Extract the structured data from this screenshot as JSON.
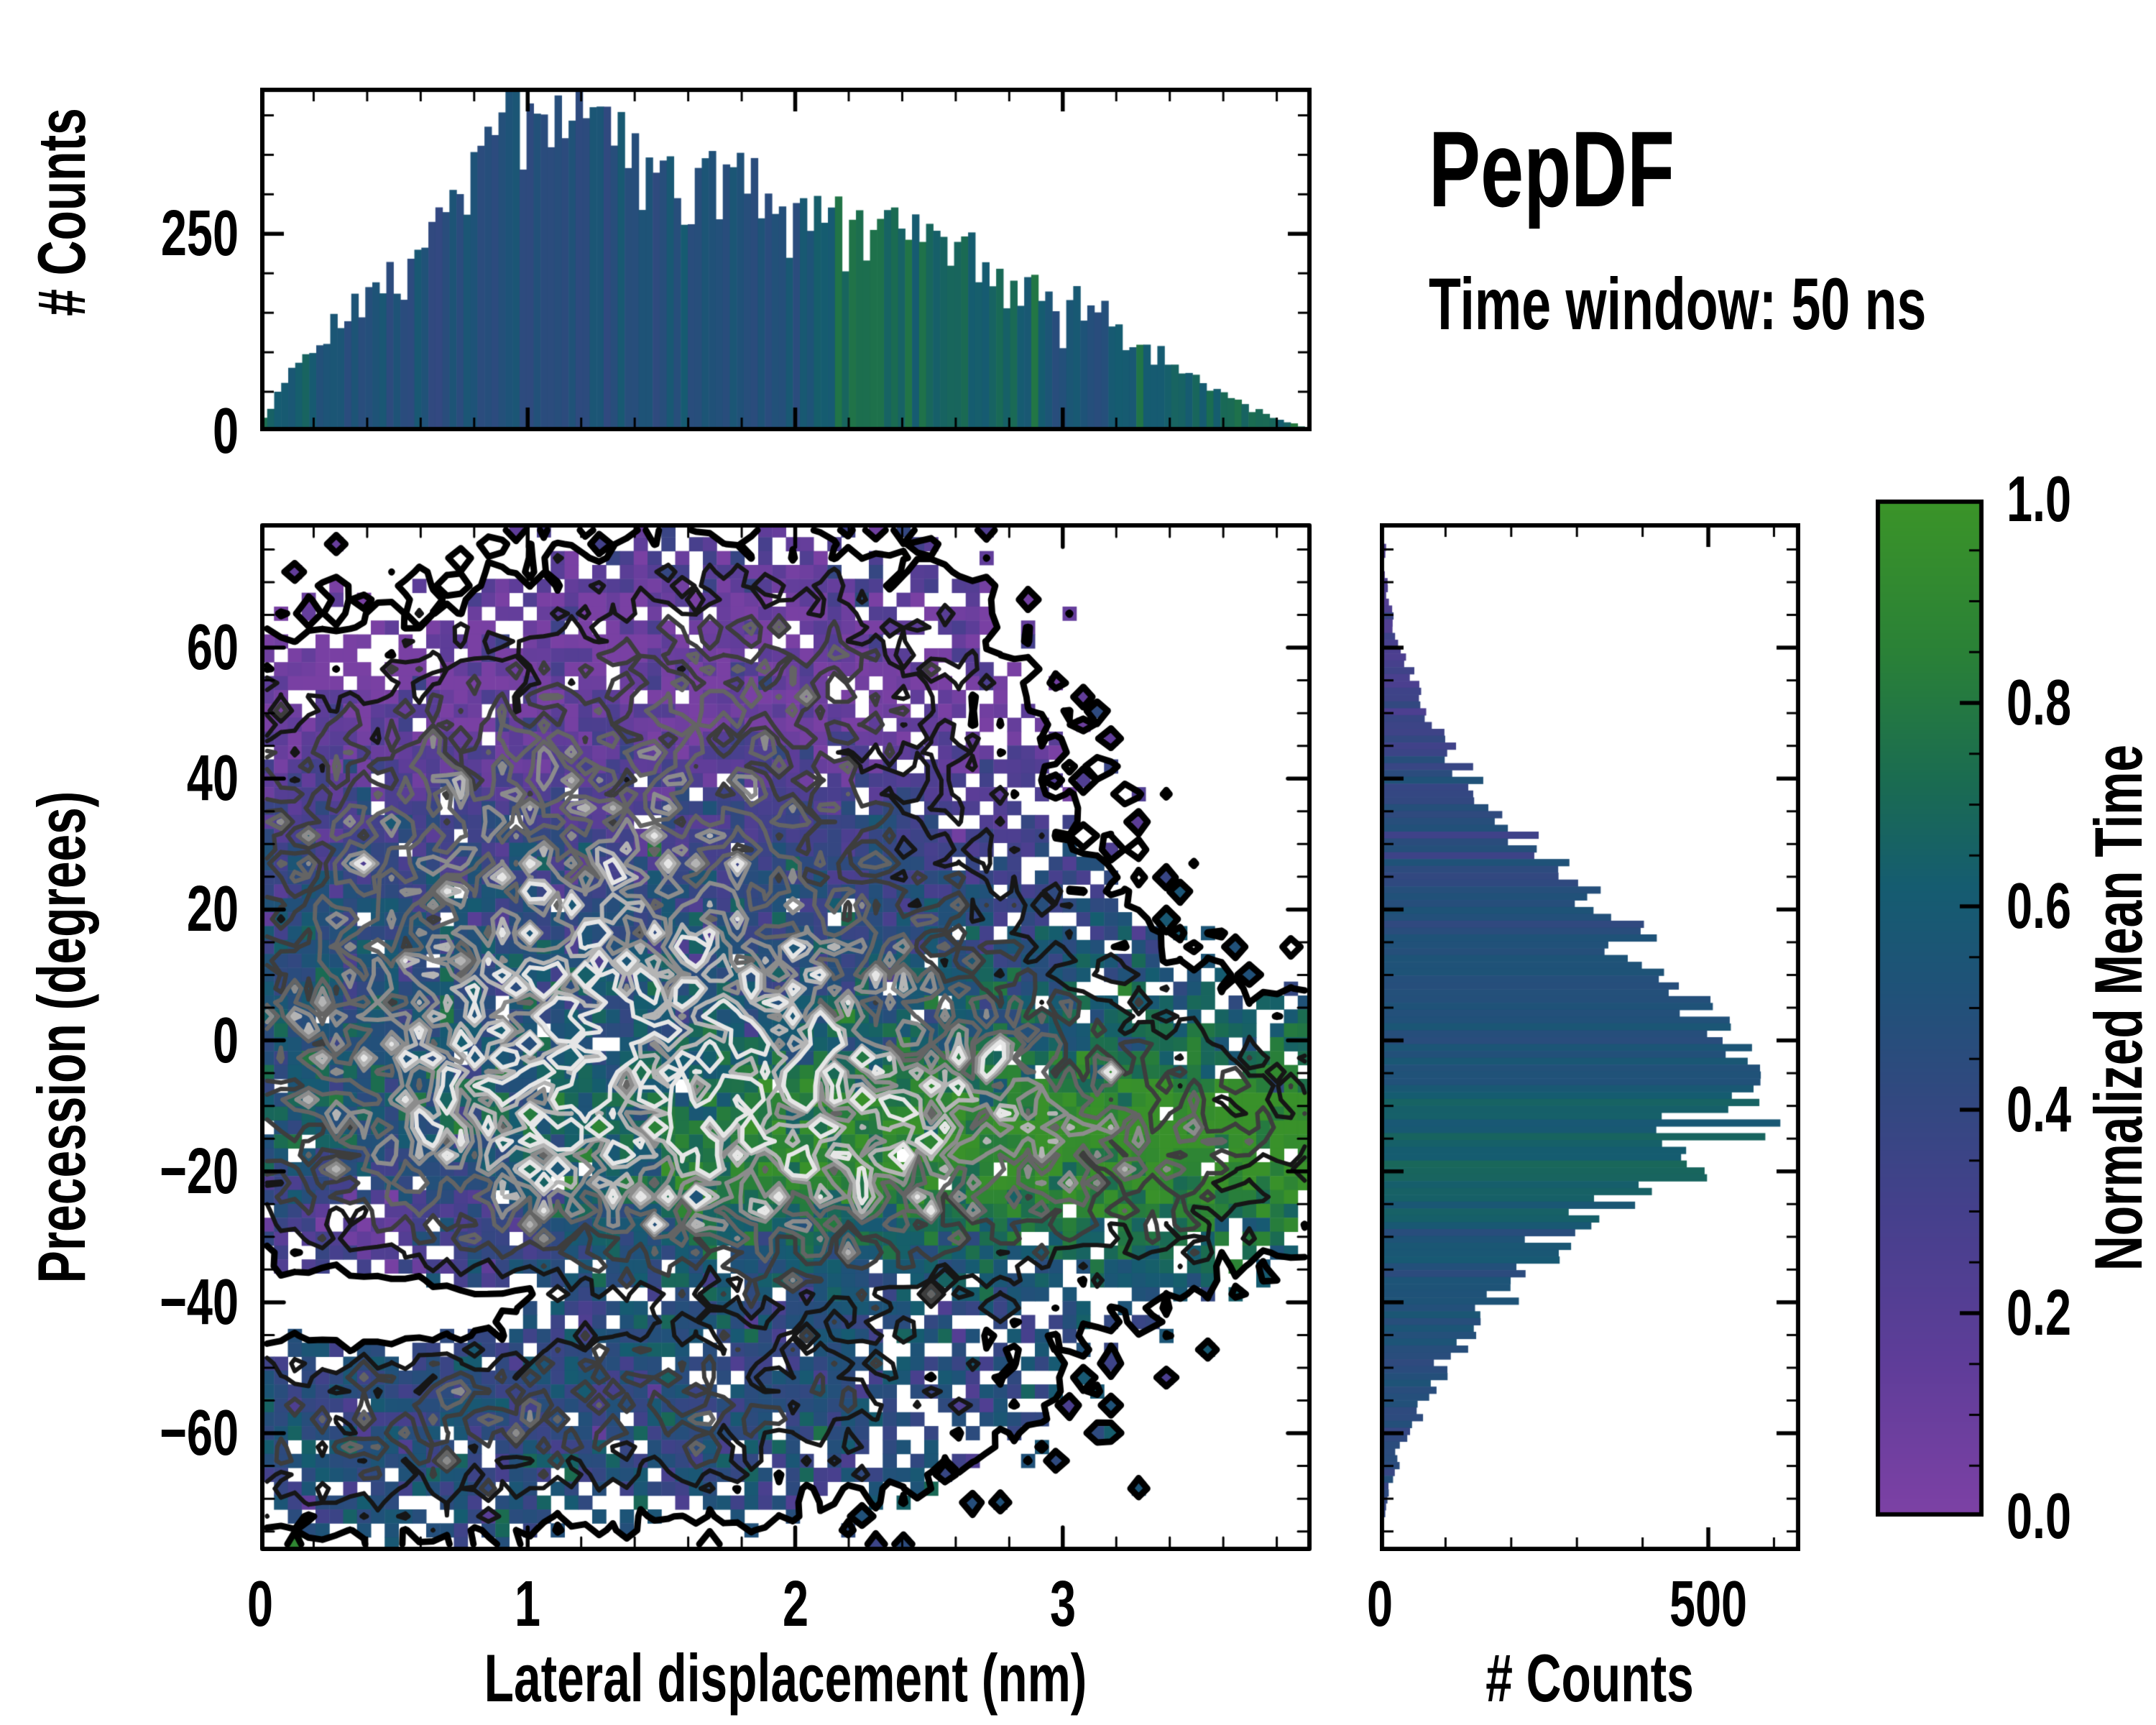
{
  "header": {
    "title": "PepDF",
    "subtitle": "Time window: 50 ns"
  },
  "axes": {
    "top": {
      "ylabel": "# Counts",
      "ylim": [
        0,
        435
      ],
      "yticks": [
        {
          "v": 250,
          "label": "250"
        },
        {
          "v": 0,
          "label": "0"
        }
      ],
      "y_minor_step": 50
    },
    "main": {
      "xlabel": "Lateral displacement (nm)",
      "ylabel": "Precession (degrees)",
      "xlim": [
        0,
        3.93
      ],
      "ylim": [
        -78,
        79
      ],
      "xticks": [
        {
          "v": 0,
          "label": "0"
        },
        {
          "v": 1,
          "label": "1"
        },
        {
          "v": 2,
          "label": "2"
        },
        {
          "v": 3,
          "label": "3"
        }
      ],
      "yticks": [
        {
          "v": 60,
          "label": "60"
        },
        {
          "v": 40,
          "label": "40"
        },
        {
          "v": 20,
          "label": "20"
        },
        {
          "v": 0,
          "label": "0"
        },
        {
          "v": -20,
          "label": "−20"
        },
        {
          "v": -40,
          "label": "−40"
        },
        {
          "v": -60,
          "label": "−60"
        }
      ],
      "x_minor_step": 0.2,
      "y_minor_step": 5
    },
    "right": {
      "xlabel": "# Counts",
      "xlim": [
        0,
        640
      ],
      "xticks": [
        {
          "v": 0,
          "label": "0"
        },
        {
          "v": 500,
          "label": "500"
        }
      ],
      "x_minor_step": 100
    },
    "colorbar": {
      "label": "Normalized Mean Time",
      "ticks": [
        {
          "v": 1.0,
          "label": "1.0"
        },
        {
          "v": 0.8,
          "label": "0.8"
        },
        {
          "v": 0.6,
          "label": "0.6"
        },
        {
          "v": 0.4,
          "label": "0.4"
        },
        {
          "v": 0.2,
          "label": "0.2"
        },
        {
          "v": 0.0,
          "label": "0.0"
        }
      ],
      "minor_step": 0.05,
      "range": [
        0,
        1
      ]
    }
  },
  "chart_data": [
    {
      "type": "bar",
      "name": "top-marginal-histogram",
      "orientation": "vertical",
      "xlabel": "Lateral displacement (nm)",
      "ylabel": "# Counts",
      "x_range": [
        0,
        3.93
      ],
      "y_range": [
        0,
        435
      ],
      "n_bins": 150,
      "bar_color_encodes": "normalized mean time",
      "envelope_x": [
        0,
        0.1,
        0.2,
        0.3,
        0.4,
        0.5,
        0.6,
        0.7,
        0.8,
        0.9,
        1.0,
        1.1,
        1.2,
        1.3,
        1.4,
        1.5,
        1.6,
        1.7,
        1.8,
        1.9,
        2.0,
        2.1,
        2.2,
        2.3,
        2.4,
        2.5,
        2.6,
        2.7,
        2.8,
        2.9,
        3.0,
        3.1,
        3.2,
        3.3,
        3.4,
        3.5,
        3.6,
        3.7,
        3.8,
        3.9
      ],
      "envelope_counts": [
        8,
        70,
        110,
        140,
        175,
        205,
        240,
        290,
        345,
        375,
        395,
        400,
        405,
        370,
        360,
        340,
        330,
        335,
        345,
        305,
        295,
        285,
        270,
        260,
        250,
        240,
        255,
        205,
        185,
        165,
        150,
        155,
        125,
        105,
        85,
        65,
        45,
        30,
        16,
        5
      ],
      "envelope_mean_time": [
        0.78,
        0.6,
        0.52,
        0.5,
        0.5,
        0.5,
        0.49,
        0.48,
        0.48,
        0.47,
        0.47,
        0.47,
        0.48,
        0.48,
        0.49,
        0.5,
        0.5,
        0.5,
        0.51,
        0.52,
        0.55,
        0.6,
        0.68,
        0.72,
        0.73,
        0.72,
        0.7,
        0.68,
        0.62,
        0.58,
        0.55,
        0.56,
        0.58,
        0.62,
        0.66,
        0.68,
        0.7,
        0.72,
        0.72,
        0.7
      ]
    },
    {
      "type": "heatmap",
      "name": "joint-2d-histogram",
      "xlabel": "Lateral displacement (nm)",
      "ylabel": "Precession (degrees)",
      "x_range": [
        0,
        3.93
      ],
      "y_range": [
        -78,
        79
      ],
      "nx": 76,
      "ny": 74,
      "color_encodes": "Normalized Mean Time",
      "empty_bins": "white",
      "density_blobs": [
        [
          1.35,
          18,
          0.85,
          26,
          1.0
        ],
        [
          1.15,
          -8,
          0.9,
          16,
          0.9
        ],
        [
          2.4,
          -14,
          0.85,
          14,
          0.75
        ],
        [
          1.2,
          -55,
          0.95,
          11,
          0.5
        ],
        [
          1.9,
          58,
          0.5,
          11,
          0.33
        ],
        [
          0.35,
          35,
          0.5,
          13,
          0.3
        ],
        [
          3.35,
          -15,
          0.5,
          11,
          0.22
        ],
        [
          0.3,
          -62,
          0.45,
          9,
          0.22
        ],
        [
          0.7,
          -42,
          0.6,
          6,
          -0.35
        ]
      ],
      "density_scale": 1.9,
      "mask_threshold": 0.06,
      "contour_levels": [
        0.06,
        0.16,
        0.28,
        0.42,
        0.58,
        0.74,
        0.88
      ],
      "contour_colors": [
        "#000000",
        "#161616",
        "#3d3d3d",
        "#646464",
        "#8c8c8c",
        "#b4b4b4",
        "#e6e6e6"
      ],
      "mean_time_field": {
        "base": 0.5,
        "top_purple": [
          60,
          16,
          0.42
        ],
        "upper_indigo": [
          38,
          14,
          0.08
        ],
        "green_band": {
          "y0": -16,
          "sy": 11,
          "a0": 0.12,
          "a1": 0.42,
          "x0": 0.9,
          "x1": 2.3
        },
        "right_tip_green": [
          3.55,
          0.45,
          -12,
          12,
          0.12
        ],
        "bottom_left_purple": [
          0.4,
          0.42,
          -30,
          8,
          0.38
        ],
        "bottom_shift": [
          -58,
          12,
          0.05
        ]
      }
    },
    {
      "type": "bar",
      "name": "right-marginal-histogram",
      "orientation": "horizontal",
      "xlabel": "# Counts",
      "ylabel": "Precession (degrees)",
      "x_range": [
        0,
        640
      ],
      "y_range": [
        -78,
        79
      ],
      "n_bins": 150,
      "bar_color_encodes": "normalized mean time",
      "envelope_y": [
        78,
        73,
        68,
        63,
        58,
        53,
        48,
        43,
        38,
        33,
        28,
        23,
        18,
        13,
        8,
        4,
        0,
        -4,
        -8,
        -12,
        -16,
        -20,
        -24,
        -28,
        -32,
        -36,
        -40,
        -44,
        -48,
        -52,
        -56,
        -60,
        -64,
        -68,
        -72,
        -77
      ],
      "envelope_counts": [
        2,
        6,
        12,
        22,
        38,
        58,
        85,
        115,
        150,
        195,
        240,
        290,
        340,
        395,
        450,
        495,
        530,
        575,
        560,
        525,
        480,
        430,
        360,
        300,
        250,
        205,
        170,
        140,
        112,
        88,
        62,
        42,
        26,
        14,
        6,
        1
      ],
      "envelope_mean_time": [
        0.22,
        0.24,
        0.26,
        0.28,
        0.3,
        0.33,
        0.36,
        0.38,
        0.41,
        0.44,
        0.46,
        0.48,
        0.49,
        0.5,
        0.51,
        0.52,
        0.53,
        0.55,
        0.58,
        0.62,
        0.66,
        0.67,
        0.64,
        0.6,
        0.56,
        0.52,
        0.5,
        0.48,
        0.47,
        0.46,
        0.45,
        0.44,
        0.43,
        0.42,
        0.41,
        0.4
      ]
    },
    {
      "type": "colorbar",
      "name": "normalized-mean-time-colorbar",
      "label": "Normalized Mean Time",
      "range": [
        0,
        1
      ],
      "stops": [
        [
          0.0,
          "#7d41a5"
        ],
        [
          0.15,
          "#5f3d99"
        ],
        [
          0.3,
          "#45408c"
        ],
        [
          0.42,
          "#30497f"
        ],
        [
          0.52,
          "#1f5278"
        ],
        [
          0.62,
          "#155c70"
        ],
        [
          0.72,
          "#1a6b52"
        ],
        [
          0.85,
          "#2a8137"
        ],
        [
          1.0,
          "#3b9428"
        ]
      ]
    }
  ],
  "render": {
    "seed": 1337,
    "density_lognorm_sigma": 0.33,
    "dropout_scale": 0.09,
    "dropout_max": 0.5,
    "dropout_base": 0.018,
    "satellite_prob": 0.05,
    "t_noise_sigma": 0.11,
    "bar_count_jitter": 0.09,
    "bar_t_jitter": 0.05
  }
}
